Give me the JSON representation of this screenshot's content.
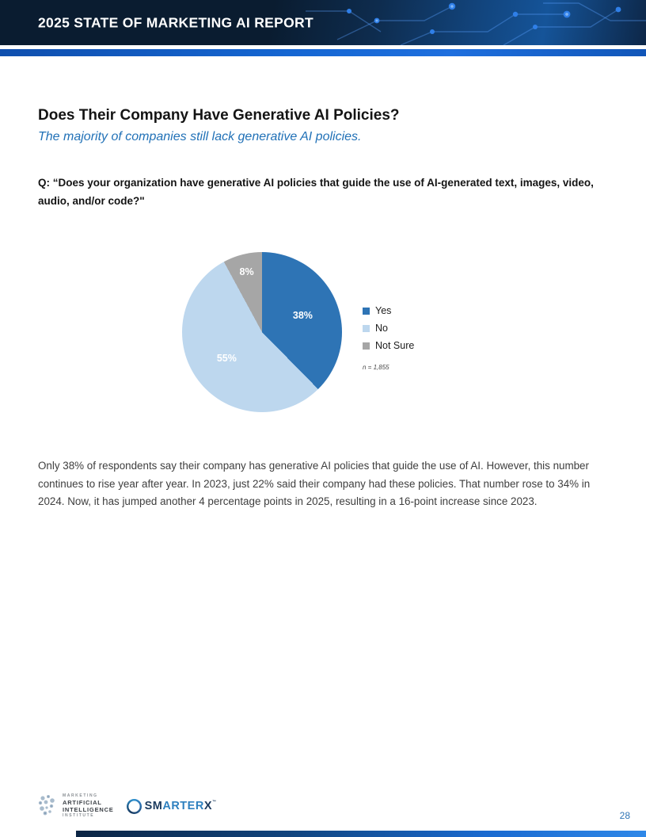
{
  "header": {
    "title": "2025 STATE OF MARKETING AI REPORT"
  },
  "section": {
    "title": "Does Their Company Have Generative AI Policies?",
    "subtitle": "The majority of companies still lack generative AI policies.",
    "question": "Q: “Does your organization have generative AI policies that guide the use of AI-generated text, images, video, audio, and/or code?\"",
    "body": "Only 38% of respondents say their company has generative AI policies that guide the use of AI. However, this number continues to rise year after year. In 2023, just 22% said their company had these policies. That number rose to 34% in 2024. Now, it has jumped another 4 percentage points in 2025, resulting in a 16-point increase since 2023.",
    "page_number": "28"
  },
  "chart_data": {
    "type": "pie",
    "labels": [
      "Yes",
      "No",
      "Not Sure"
    ],
    "values": [
      38,
      55,
      8
    ],
    "value_labels": [
      "38%",
      "55%",
      "8%"
    ],
    "colors": [
      "#2e74b5",
      "#bdd7ee",
      "#a6a6a6"
    ],
    "legend_position": "right",
    "note": "n = 1,855",
    "start_angle_deg": 0,
    "direction": "clockwise"
  },
  "footer": {
    "maii_lines": [
      "MARKETING",
      "ARTIFICIAL",
      "INTELLIGENCE",
      "INSTITUTE"
    ],
    "smarterx": {
      "sm": "SM",
      "arter": "ARTER",
      "x": "X",
      "tm": "™"
    }
  },
  "colors": {
    "header_bg": "#0a1c30",
    "accent_bar": "#1566d2",
    "subtitle_blue": "#2171b7",
    "page_number_blue": "#2e74b5"
  }
}
